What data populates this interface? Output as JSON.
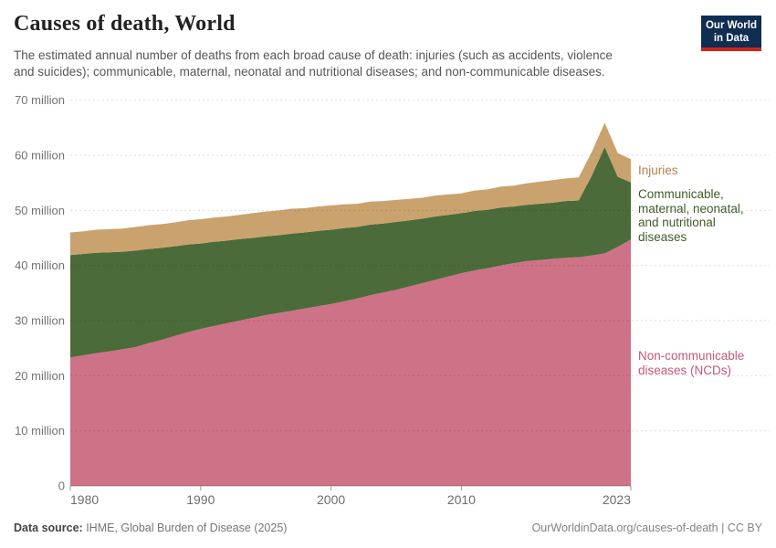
{
  "header": {
    "title": "Causes of death, World",
    "subtitle_line1": "The estimated annual number of deaths from each broad cause of death: injuries (such as accidents, violence",
    "subtitle_line2": "and suicides); communicable, maternal, neonatal and nutritional diseases; and non-communicable diseases.",
    "logo": {
      "line1": "Our World",
      "line2": "in Data",
      "bg_color": "#102D52",
      "bar_color": "#CB261D"
    }
  },
  "chart_data": {
    "type": "area",
    "stacked": true,
    "title": "Causes of death, World",
    "x": [
      1980,
      1981,
      1982,
      1983,
      1984,
      1985,
      1986,
      1987,
      1988,
      1989,
      1990,
      1991,
      1992,
      1993,
      1994,
      1995,
      1996,
      1997,
      1998,
      1999,
      2000,
      2001,
      2002,
      2003,
      2004,
      2005,
      2006,
      2007,
      2008,
      2009,
      2010,
      2011,
      2012,
      2013,
      2014,
      2015,
      2016,
      2017,
      2018,
      2019,
      2020,
      2021,
      2022,
      2023
    ],
    "series": [
      {
        "name": "Non-communicable diseases (NCDs)",
        "color": "#CE7287",
        "label_color": "#C05A76",
        "values": [
          23.3,
          23.7,
          24.1,
          24.4,
          24.8,
          25.2,
          25.9,
          26.5,
          27.2,
          27.9,
          28.5,
          29.0,
          29.5,
          30.0,
          30.5,
          31.0,
          31.4,
          31.8,
          32.2,
          32.6,
          33.0,
          33.5,
          34.0,
          34.6,
          35.1,
          35.6,
          36.2,
          36.8,
          37.4,
          38.0,
          38.6,
          39.1,
          39.5,
          40.0,
          40.4,
          40.8,
          41.0,
          41.2,
          41.4,
          41.5,
          41.8,
          42.2,
          43.4,
          44.7
        ]
      },
      {
        "name": "Communicable, maternal, neonatal, and nutritional diseases",
        "color": "#4C6B3A",
        "label_color": "#3E5C2B",
        "values": [
          18.6,
          18.4,
          18.2,
          18.0,
          17.7,
          17.5,
          17.1,
          16.7,
          16.3,
          15.9,
          15.5,
          15.3,
          15.0,
          14.8,
          14.5,
          14.3,
          14.1,
          14.0,
          13.8,
          13.7,
          13.5,
          13.3,
          13.0,
          12.8,
          12.5,
          12.3,
          12.0,
          11.7,
          11.5,
          11.2,
          10.9,
          10.8,
          10.6,
          10.5,
          10.3,
          10.2,
          10.2,
          10.2,
          10.3,
          10.3,
          14.5,
          19.3,
          12.7,
          10.4
        ]
      },
      {
        "name": "Injuries",
        "color": "#C9A26E",
        "label_color": "#B2834C",
        "values": [
          4.1,
          4.1,
          4.2,
          4.2,
          4.2,
          4.3,
          4.3,
          4.3,
          4.3,
          4.4,
          4.4,
          4.4,
          4.4,
          4.4,
          4.5,
          4.5,
          4.5,
          4.5,
          4.4,
          4.4,
          4.4,
          4.3,
          4.2,
          4.2,
          4.1,
          4.0,
          3.9,
          3.8,
          3.8,
          3.7,
          3.6,
          3.7,
          3.7,
          3.8,
          3.8,
          3.9,
          4.0,
          4.1,
          4.1,
          4.2,
          4.3,
          4.4,
          4.3,
          4.2
        ]
      }
    ],
    "units": "million deaths",
    "ylim": [
      0,
      70
    ],
    "yticks": [
      0,
      10,
      20,
      30,
      40,
      50,
      60,
      70
    ],
    "ytick_labels": [
      "0",
      "10 million",
      "20 million",
      "30 million",
      "40 million",
      "50 million",
      "60 million",
      "70 million"
    ],
    "xticks": [
      1980,
      1990,
      2000,
      2010,
      2023
    ],
    "grid": "dashed horizontal",
    "legend_position": "right"
  },
  "series_labels": {
    "injuries": "Injuries",
    "cmnn_lines": [
      "Communicable,",
      "maternal, neonatal,",
      "and nutritional",
      "diseases"
    ],
    "ncd_lines": [
      "Non-communicable",
      "diseases (NCDs)"
    ]
  },
  "footer": {
    "datasource_label": "Data source:",
    "datasource_value": " IHME, Global Burden of Disease (2025)",
    "attribution": "OurWorldinData.org/causes-of-death | CC BY"
  }
}
